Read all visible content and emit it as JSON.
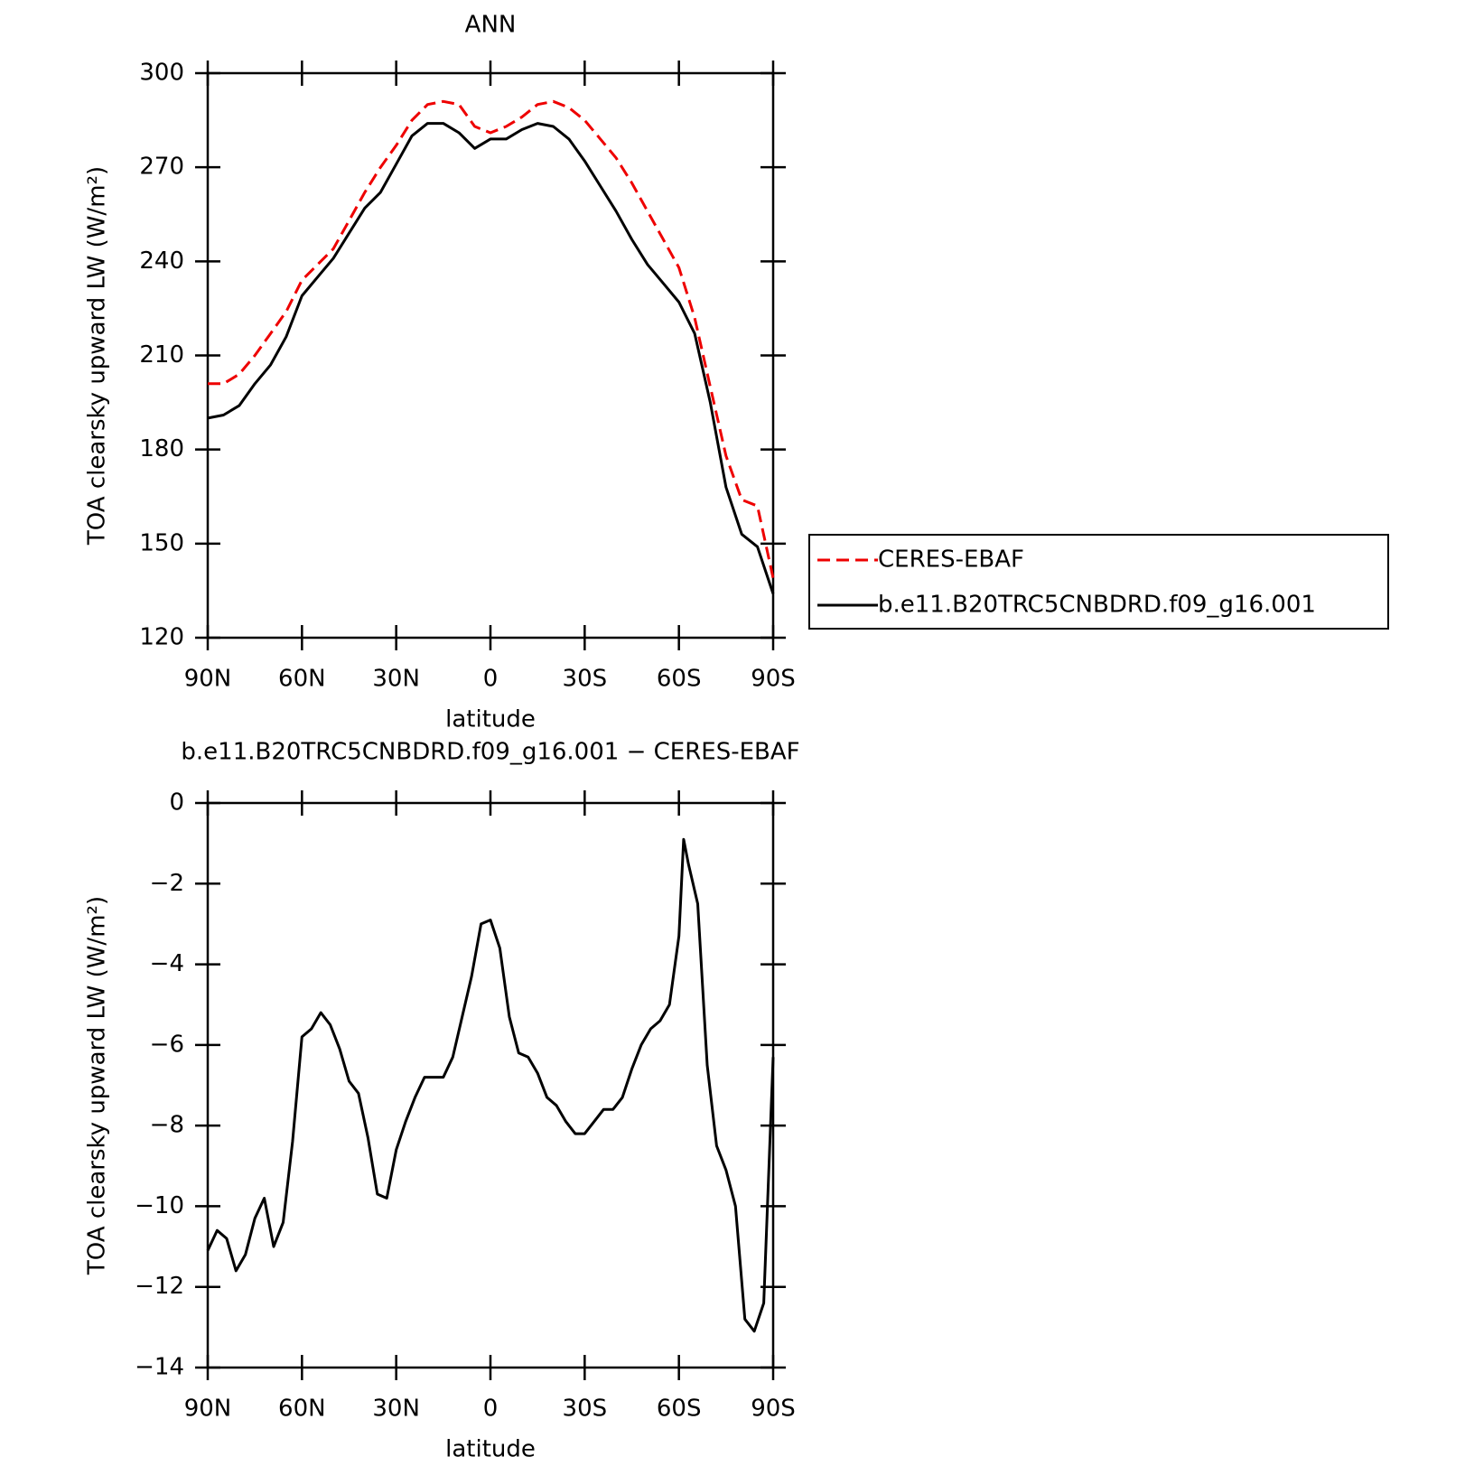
{
  "chart_data": [
    {
      "type": "line",
      "title": "ANN",
      "x_label": "latitude",
      "y_label": "TOA clearsky upward LW (W/m²)",
      "x": [
        90,
        85,
        80,
        75,
        70,
        65,
        60,
        55,
        50,
        45,
        40,
        35,
        30,
        25,
        20,
        15,
        10,
        5,
        0,
        -5,
        -10,
        -15,
        -20,
        -25,
        -30,
        -35,
        -40,
        -45,
        -50,
        -55,
        -60,
        -65,
        -70,
        -75,
        -80,
        -85,
        -90
      ],
      "xlim": [
        90,
        -90
      ],
      "xticks": [
        {
          "value": 90,
          "label": "90N"
        },
        {
          "value": 60,
          "label": "60N"
        },
        {
          "value": 30,
          "label": "30N"
        },
        0,
        {
          "value": -30,
          "label": "30S"
        },
        {
          "value": -60,
          "label": "60S"
        },
        {
          "value": -90,
          "label": "90S"
        }
      ],
      "ylim": [
        120,
        300
      ],
      "yticks": [
        120,
        150,
        180,
        210,
        240,
        270,
        300
      ],
      "legend": "right",
      "series": [
        {
          "name": "CERES-EBAF",
          "color": "#ee0000",
          "linestyle": "dashed",
          "values": [
            201,
            201,
            204,
            210,
            217,
            224,
            234,
            239,
            244,
            253,
            262,
            270,
            277,
            285,
            290,
            291,
            290,
            283,
            281,
            283,
            286,
            290,
            291,
            289,
            285,
            279,
            273,
            265,
            256,
            247,
            238,
            222,
            200,
            178,
            164,
            162,
            139
          ]
        },
        {
          "name": "b.e11.B20TRC5CNBDRD.f09_g16.001",
          "color": "#000000",
          "linestyle": "solid",
          "values": [
            190,
            191,
            194,
            201,
            207,
            216,
            229,
            235,
            241,
            249,
            257,
            262,
            271,
            280,
            284,
            284,
            281,
            276,
            279,
            279,
            282,
            284,
            283,
            279,
            272,
            264,
            256,
            247,
            239,
            233,
            227,
            217,
            195,
            168,
            153,
            149,
            134
          ]
        }
      ]
    },
    {
      "type": "line",
      "title": "b.e11.B20TRC5CNBDRD.f09_g16.001 − CERES-EBAF",
      "x_label": "latitude",
      "y_label": "TOA clearsky upward LW (W/m²)",
      "x": [
        90,
        87,
        84,
        81,
        78,
        75,
        72,
        69,
        66,
        63,
        60,
        57,
        54,
        51,
        48,
        45,
        42,
        39,
        36,
        33,
        30,
        27,
        24,
        21,
        18,
        15,
        12,
        9,
        6,
        3,
        0,
        -3,
        -6,
        -9,
        -12,
        -15,
        -18,
        -21,
        -24,
        -27,
        -30,
        -33,
        -36,
        -39,
        -42,
        -45,
        -48,
        -51,
        -54,
        -57,
        -60,
        -61.5,
        -63,
        -66,
        -69,
        -72,
        -75,
        -78,
        -81,
        -84,
        -87,
        -90
      ],
      "xlim": [
        90,
        -90
      ],
      "xticks": [
        {
          "value": 90,
          "label": "90N"
        },
        {
          "value": 60,
          "label": "60N"
        },
        {
          "value": 30,
          "label": "30N"
        },
        0,
        {
          "value": -30,
          "label": "30S"
        },
        {
          "value": -60,
          "label": "60S"
        },
        {
          "value": -90,
          "label": "90S"
        }
      ],
      "ylim": [
        -14,
        0
      ],
      "yticks": [
        {
          "value": -14,
          "label": "−14"
        },
        {
          "value": -12,
          "label": "−12"
        },
        {
          "value": -10,
          "label": "−10"
        },
        {
          "value": -8,
          "label": "−8"
        },
        {
          "value": -6,
          "label": "−6"
        },
        {
          "value": -4,
          "label": "−4"
        },
        {
          "value": -2,
          "label": "−2"
        },
        0
      ],
      "series": [
        {
          "color": "#000000",
          "linestyle": "solid",
          "values": [
            -11.1,
            -10.6,
            -10.8,
            -11.6,
            -11.2,
            -10.3,
            -9.8,
            -11.0,
            -10.4,
            -8.4,
            -5.8,
            -5.6,
            -5.2,
            -5.5,
            -6.1,
            -6.9,
            -7.2,
            -8.3,
            -9.7,
            -9.8,
            -8.6,
            -7.9,
            -7.3,
            -6.8,
            -6.8,
            -6.8,
            -6.3,
            -5.3,
            -4.3,
            -3.0,
            -2.9,
            -3.6,
            -5.3,
            -6.2,
            -6.3,
            -6.7,
            -7.3,
            -7.5,
            -7.9,
            -8.2,
            -8.2,
            -7.9,
            -7.6,
            -7.6,
            -7.3,
            -6.6,
            -6.0,
            -5.6,
            -5.4,
            -5.0,
            -3.3,
            -0.9,
            -1.5,
            -2.5,
            -6.5,
            -8.5,
            -9.1,
            -10.0,
            -12.8,
            -13.1,
            -12.4,
            -6.3
          ]
        }
      ]
    }
  ]
}
